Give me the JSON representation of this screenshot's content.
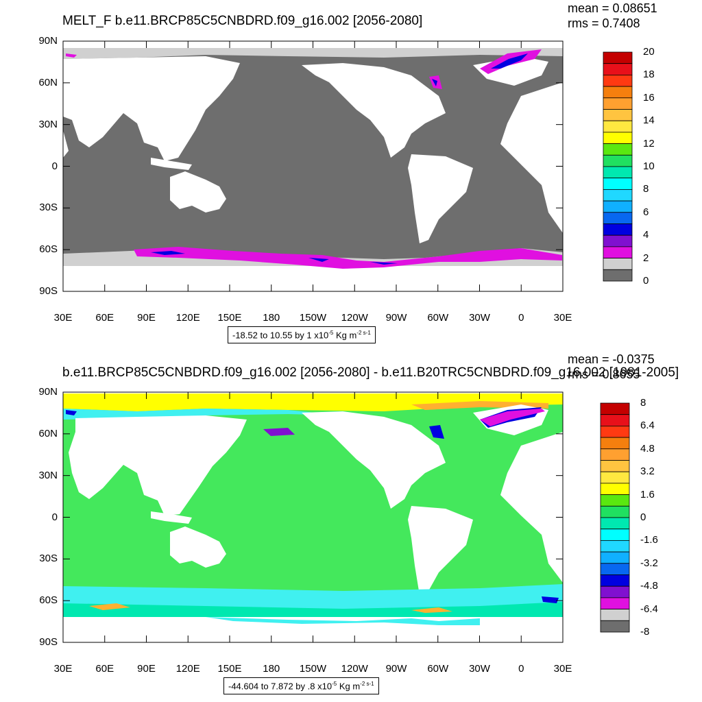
{
  "panels": [
    {
      "title": "MELT_F b.e11.BRCP85C5CNBDRD.f09_g16.002 [2056-2080]",
      "mean_label": "mean = 0.08651",
      "rms_label": "rms = 0.7408",
      "range_text": "-18.52 to 10.55 by 1",
      "units_prefix": "x10",
      "units_exp": "-5",
      "units_name": "Kg m",
      "units_exp2": "-2 s-1",
      "y_ticks": [
        "90N",
        "60N",
        "30N",
        "0",
        "30S",
        "60S",
        "90S"
      ],
      "x_ticks": [
        "30E",
        "60E",
        "90E",
        "120E",
        "150E",
        "180",
        "150W",
        "120W",
        "90W",
        "60W",
        "30W",
        "0",
        "30E"
      ],
      "legend_labels": [
        "20",
        "18",
        "16",
        "14",
        "12",
        "10",
        "8",
        "6",
        "4",
        "2",
        "0"
      ],
      "legend_colors": [
        "#c40000",
        "#e8101a",
        "#ff3a12",
        "#f57f0e",
        "#ffa030",
        "#ffc440",
        "#ffe840",
        "#ffff00",
        "#5ae810",
        "#20e060",
        "#00e8b0",
        "#00ffff",
        "#20d8ff",
        "#10b0ff",
        "#0868f0",
        "#0000e0",
        "#8010d0",
        "#e010e0",
        "#d0d0d0",
        "#6e6e6e"
      ]
    },
    {
      "title": "b.e11.BRCP85C5CNBDRD.f09_g16.002 [2056-2080] - b.e11.B20TRC5CNBDRD.f09_g16.002 [1981-2005]",
      "mean_label": "mean = -0.0375",
      "rms_label": "rms = 0.8655",
      "range_text": "-44.604 to 7.872 by .8",
      "units_prefix": "x10",
      "units_exp": "-5",
      "units_name": "Kg m",
      "units_exp2": "-2 s-1",
      "y_ticks": [
        "90N",
        "60N",
        "30N",
        "0",
        "30S",
        "60S",
        "90S"
      ],
      "x_ticks": [
        "30E",
        "60E",
        "90E",
        "120E",
        "150E",
        "180",
        "150W",
        "120W",
        "90W",
        "60W",
        "30W",
        "0",
        "30E"
      ],
      "legend_labels": [
        "8",
        "6.4",
        "4.8",
        "3.2",
        "1.6",
        "0",
        "-1.6",
        "-3.2",
        "-4.8",
        "-6.4",
        "-8"
      ],
      "legend_colors": [
        "#c40000",
        "#e8101a",
        "#ff3a12",
        "#f57f0e",
        "#ffa030",
        "#ffc440",
        "#ffe840",
        "#ffff00",
        "#5ae810",
        "#20e060",
        "#00e8b0",
        "#00ffff",
        "#20d8ff",
        "#10b0ff",
        "#0868f0",
        "#0000e0",
        "#8010d0",
        "#e010e0",
        "#d0d0d0",
        "#6e6e6e"
      ]
    }
  ],
  "colors": {
    "ocean_top": "#6e6e6e",
    "ocean_bottom": "#44e85c",
    "land": "#ffffff",
    "sea_ice_gray": "#d0d0d0",
    "magenta": "#e010e0",
    "cyan": "#40f0f0",
    "yellow": "#ffff00",
    "orange": "#ffb030"
  }
}
